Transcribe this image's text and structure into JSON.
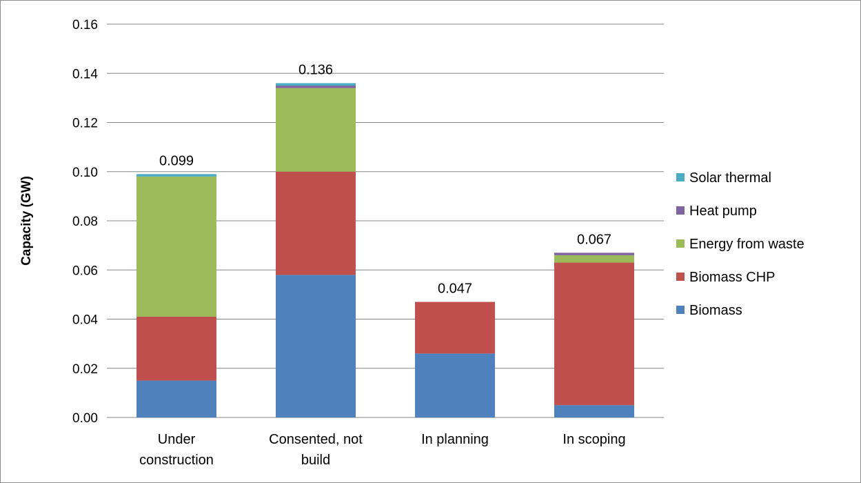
{
  "chart_data": {
    "type": "bar",
    "stacked": true,
    "ylabel": "Capacity (GW)",
    "xlabel": "",
    "ylim": [
      0,
      0.16
    ],
    "yticks": [
      "0.00",
      "0.02",
      "0.04",
      "0.06",
      "0.08",
      "0.10",
      "0.12",
      "0.14",
      "0.16"
    ],
    "ytick_values": [
      0,
      0.02,
      0.04,
      0.06,
      0.08,
      0.1,
      0.12,
      0.14,
      0.16
    ],
    "grid": true,
    "legend_position": "right",
    "categories": [
      [
        "Under",
        "construction"
      ],
      [
        "Consented, not",
        "build"
      ],
      [
        "In planning"
      ],
      [
        "In scoping"
      ]
    ],
    "series": [
      {
        "name": "Biomass",
        "color": "#4f81bd",
        "values": [
          0.015,
          0.058,
          0.026,
          0.005
        ]
      },
      {
        "name": "Biomass CHP",
        "color": "#c0504d",
        "values": [
          0.026,
          0.042,
          0.021,
          0.058
        ]
      },
      {
        "name": "Energy from waste",
        "color": "#9bbb59",
        "values": [
          0.057,
          0.034,
          0.0,
          0.003
        ]
      },
      {
        "name": "Heat pump",
        "color": "#8064a2",
        "values": [
          0.0,
          0.001,
          0.0,
          0.001
        ]
      },
      {
        "name": "Solar thermal",
        "color": "#4bacc6",
        "values": [
          0.001,
          0.001,
          0.0,
          0.0
        ]
      }
    ],
    "totals": [
      "0.099",
      "0.136",
      "0.047",
      "0.067"
    ]
  }
}
